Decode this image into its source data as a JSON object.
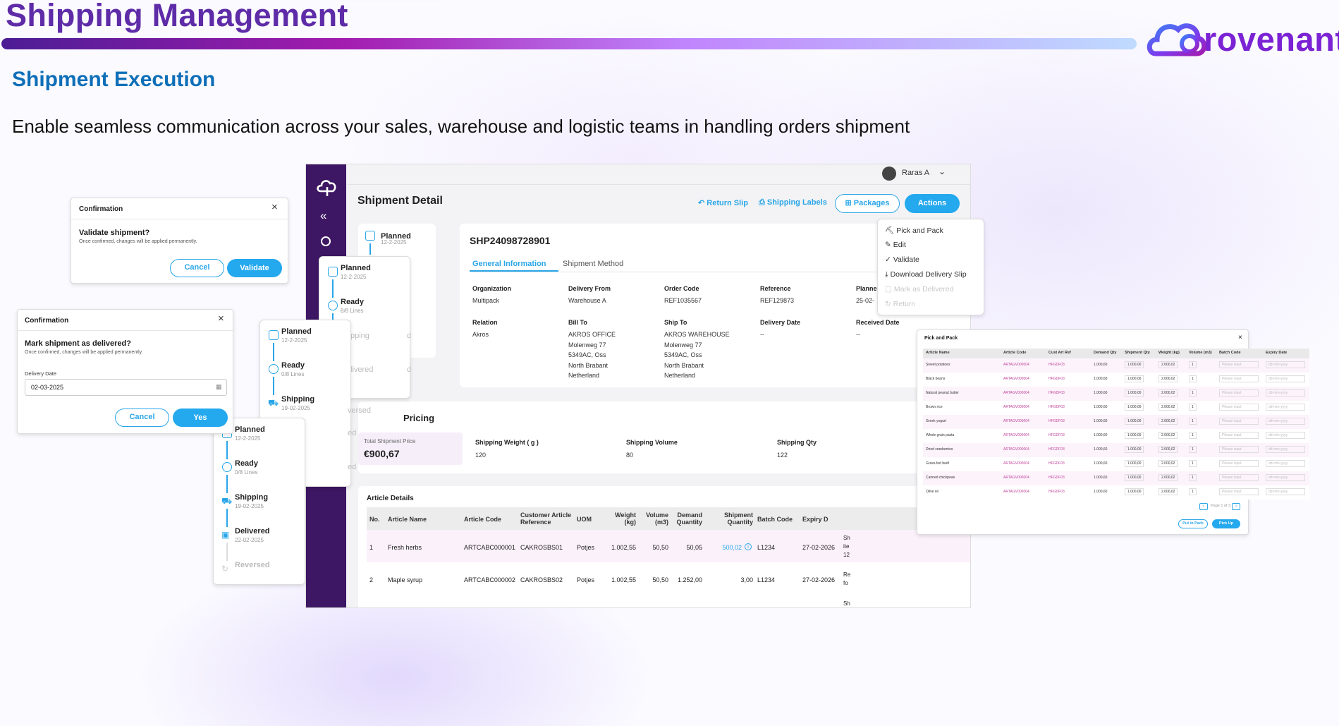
{
  "header": {
    "title": "Shipping Management",
    "logo_text": "rovenant",
    "subtitle": "Shipment Execution",
    "tagline": "Enable seamless communication across your sales, warehouse and logistic teams in handling orders shipment"
  },
  "colors": {
    "purple": "#5f2ca8",
    "blue": "#0e6fb8",
    "accent": "#24a8ee",
    "sidebar": "#3d1763"
  },
  "dialog_validate": {
    "title": "Confirmation",
    "question": "Validate shipment?",
    "note": "Once confirmed, changes will be applied permanently.",
    "cancel": "Cancel",
    "confirm": "Validate"
  },
  "dialog_delivered": {
    "title": "Confirmation",
    "question": "Mark shipment as delivered?",
    "note": "Once confirmed, changes will be applied permanently.",
    "date_label": "Delivery Date",
    "date_value": "02-03-2025",
    "cancel": "Cancel",
    "confirm": "Yes"
  },
  "timeline1": [
    {
      "title": "Planned",
      "sub": "12-2-2025"
    },
    {
      "title": "Ready",
      "sub": "8/8 Lines"
    }
  ],
  "timeline2": [
    {
      "title": "Planned",
      "sub": "12-2-2025"
    },
    {
      "title": "Ready",
      "sub": "0/8 Lines"
    },
    {
      "title": "Shipping",
      "sub": "19-02-2025"
    }
  ],
  "timeline3": [
    {
      "title": "Planned",
      "sub": "12-2-2025"
    },
    {
      "title": "Ready",
      "sub": "0/8 Lines"
    },
    {
      "title": "Shipping",
      "sub": "19-02-2025"
    },
    {
      "title": "Delivered",
      "sub": "22-02-2025"
    },
    {
      "title": "Reversed",
      "sub": ""
    }
  ],
  "ghost": {
    "g1": "pping",
    "g2": "livered",
    "g3": "versed",
    "g4": "ed",
    "g5": "ed",
    "g6": "d",
    "g7": "d"
  },
  "detail": {
    "user": "Raras A",
    "title": "Shipment Detail",
    "return_slip": "Return Slip",
    "shipping_labels": "Shipping Labels",
    "packages": "Packages",
    "actions": "Actions",
    "step_title": "Planned",
    "step_sub": "12-2-2025",
    "code": "SHP24098728901",
    "tab_general": "General Information",
    "tab_method": "Shipment Method",
    "fields": [
      {
        "label": "Organization",
        "value": "Multipack"
      },
      {
        "label": "Delivery From",
        "value": "Warehouse A"
      },
      {
        "label": "Order Code",
        "value": "REF1035567"
      },
      {
        "label": "Reference",
        "value": "REF129873"
      },
      {
        "label": "Planne",
        "value": "25-02-"
      }
    ],
    "fields2": [
      {
        "label": "Relation",
        "value": "Akros"
      },
      {
        "label": "Bill To",
        "value": "AKROS OFFICE\nMolenweg 77\n5349AC, Oss\nNorth Brabant\nNetherland"
      },
      {
        "label": "Ship To",
        "value": "AKROS WAREHOUSE\nMolenweg 77\n5349AC, Oss\nNorth Brabant\nNetherland"
      },
      {
        "label": "Delivery Date",
        "value": "--"
      },
      {
        "label": "Received Date",
        "value": "--"
      }
    ],
    "pricing_title": "Pricing",
    "total_label": "Total Shipment Price",
    "total_value": "€900,67",
    "metrics": [
      {
        "label": "Shipping Weight ( g )",
        "value": "120"
      },
      {
        "label": "Shipping Volume",
        "value": "80"
      },
      {
        "label": "Shipping Qty",
        "value": "122"
      }
    ],
    "articles_title": "Article Details",
    "columns": [
      "No.",
      "Article Name",
      "Article Code",
      "Customer Article Reference",
      "UOM",
      "Weight (kg)",
      "Volume (m3)",
      "Demand Quantity",
      "Shipment Quantity",
      "Batch Code",
      "Expiry D"
    ],
    "rows": [
      [
        "1",
        "Fresh herbs",
        "ARTCABC000001",
        "CAKROSBS01",
        "Potjes",
        "1.002,55",
        "50,50",
        "50,05",
        "500,02",
        "L1234",
        "27-02-2026",
        "Sh ite 12"
      ],
      [
        "2",
        "Maple syrup",
        "ARTCABC000002",
        "CAKROSBS02",
        "Potjes",
        "1.002,55",
        "50,50",
        "1.252,00",
        "3,00",
        "L1234",
        "27-02-2026",
        "Re fo"
      ]
    ],
    "row3_tail": "Sh"
  },
  "menu": [
    "Pick and Pack",
    "Edit",
    "Validate",
    "Download Delivery Slip",
    "Mark as Delivered",
    "Return"
  ],
  "pick": {
    "title": "Pick and Pack",
    "columns": [
      "Article Name",
      "Article Code",
      "Cust Art Ref",
      "Demand Qty",
      "Shipment Qty",
      "Weight (kg)",
      "Volume (m3)",
      "Batch Code",
      "Expiry Date"
    ],
    "rows": [
      [
        "Sweet potatoes",
        "ARTAGV000004",
        "HFGDF03",
        "1.000,60",
        "1.000,00",
        "2.000,02",
        "1"
      ],
      [
        "Black beans",
        "ARTAGV000004",
        "HFGDF03",
        "1.000,60",
        "1.000,00",
        "2.000,02",
        "1"
      ],
      [
        "Natural peanut butter",
        "ARTAGV000004",
        "HFGDF03",
        "1.000,60",
        "1.000,00",
        "2.000,02",
        "1"
      ],
      [
        "Brown rice",
        "ARTAGV000004",
        "HFGDF03",
        "1.000,60",
        "1.000,00",
        "2.000,02",
        "1"
      ],
      [
        "Greek yogurt",
        "ARTAGV000004",
        "HFGDF03",
        "1.000,60",
        "1.000,00",
        "2.000,02",
        "1"
      ],
      [
        "Whole grain pasta",
        "ARTAGV000004",
        "HFGDF03",
        "1.000,60",
        "1.000,00",
        "2.000,02",
        "1"
      ],
      [
        "Dried cranberries",
        "ARTAGV000004",
        "HFGDF03",
        "1.000,60",
        "1.000,00",
        "2.000,02",
        "1"
      ],
      [
        "Grass-fed beef",
        "ARTAGV000004",
        "HFGDF03",
        "1.000,60",
        "1.000,00",
        "2.000,02",
        "1"
      ],
      [
        "Canned chickpeas",
        "ARTAGV000004",
        "HFGDF03",
        "1.000,60",
        "1.000,00",
        "2.000,02",
        "1"
      ],
      [
        "Olive oil",
        "ARTAGV000004",
        "HFGDF03",
        "1.000,60",
        "1.000,00",
        "2.000,02",
        "1"
      ]
    ],
    "batch_ph": "Please input",
    "expiry_ph": "dd-mm-yyyy",
    "pager": "Page 1 of 3",
    "btn_pack": "Put in Pack",
    "btn_pick": "Pick Up"
  }
}
